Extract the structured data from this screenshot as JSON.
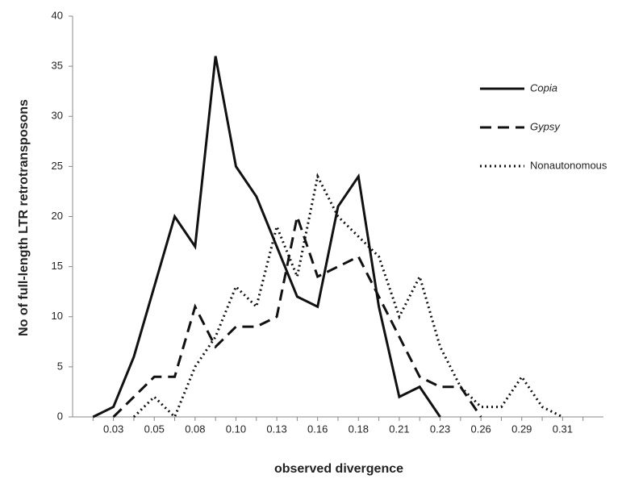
{
  "chart_data": {
    "type": "line",
    "xlabel": "observed divergence",
    "ylabel": "No of full-length LTR retrotransposons",
    "categories": [
      null,
      "0.03",
      null,
      "0.05",
      null,
      "0.08",
      null,
      "0.10",
      null,
      "0.13",
      null,
      "0.16",
      null,
      "0.18",
      null,
      "0.21",
      null,
      "0.23",
      null,
      "0.26",
      null,
      "0.29",
      null,
      "0.31",
      null
    ],
    "series": [
      {
        "name": "Copia",
        "color": "#111111",
        "dash": "solid",
        "italic": true,
        "values": [
          0,
          1,
          6,
          13,
          20,
          17,
          36,
          25,
          22,
          17,
          12,
          11,
          21,
          24,
          11,
          2,
          3,
          0,
          null,
          null,
          null,
          null,
          null,
          null,
          null
        ]
      },
      {
        "name": "Gypsy",
        "color": "#111111",
        "dash": "dash",
        "italic": true,
        "values": [
          null,
          0,
          2,
          4,
          4,
          11,
          7,
          9,
          9,
          10,
          20,
          14,
          15,
          16,
          12,
          8,
          4,
          3,
          3,
          0,
          null,
          null,
          null,
          null,
          null
        ]
      },
      {
        "name": "Nonautonomous",
        "color": "#111111",
        "dash": "dot",
        "italic": false,
        "values": [
          null,
          null,
          0,
          2,
          0,
          5,
          8,
          13,
          11,
          19,
          14,
          24,
          20,
          18,
          16,
          10,
          14,
          7,
          3,
          1,
          1,
          4,
          1,
          0,
          null
        ]
      }
    ],
    "ylim": [
      0,
      40
    ],
    "yticks": [
      0,
      5,
      10,
      15,
      20,
      25,
      30,
      35,
      40
    ],
    "legend": "upper right"
  }
}
